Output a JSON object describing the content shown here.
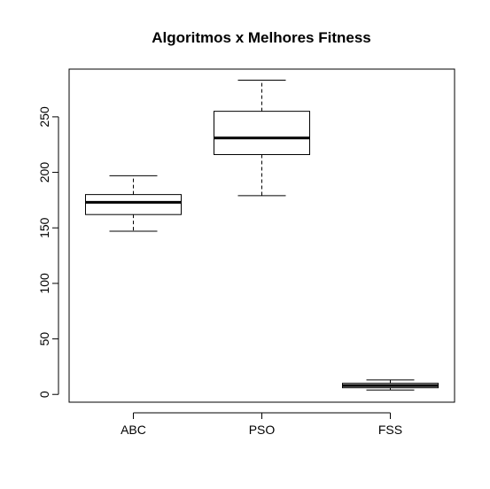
{
  "chart_data": {
    "type": "boxplot",
    "title": "Algoritmos x Melhores Fitness",
    "xlabel": "",
    "ylabel": "",
    "categories": [
      "ABC",
      "PSO",
      "FSS"
    ],
    "boxes": [
      {
        "name": "ABC",
        "min": 147,
        "q1": 162,
        "median": 173,
        "q3": 180,
        "max": 197
      },
      {
        "name": "PSO",
        "min": 179,
        "q1": 216,
        "median": 231,
        "q3": 255,
        "max": 283
      },
      {
        "name": "FSS",
        "min": 4,
        "q1": 6,
        "median": 8,
        "q3": 10,
        "max": 13
      }
    ],
    "yticks": [
      0,
      50,
      100,
      150,
      200,
      250
    ],
    "ylim": [
      -7,
      293
    ],
    "grid": false,
    "legend": "none",
    "colors": {
      "box_fill": "#ffffff",
      "stroke": "#000000"
    }
  }
}
